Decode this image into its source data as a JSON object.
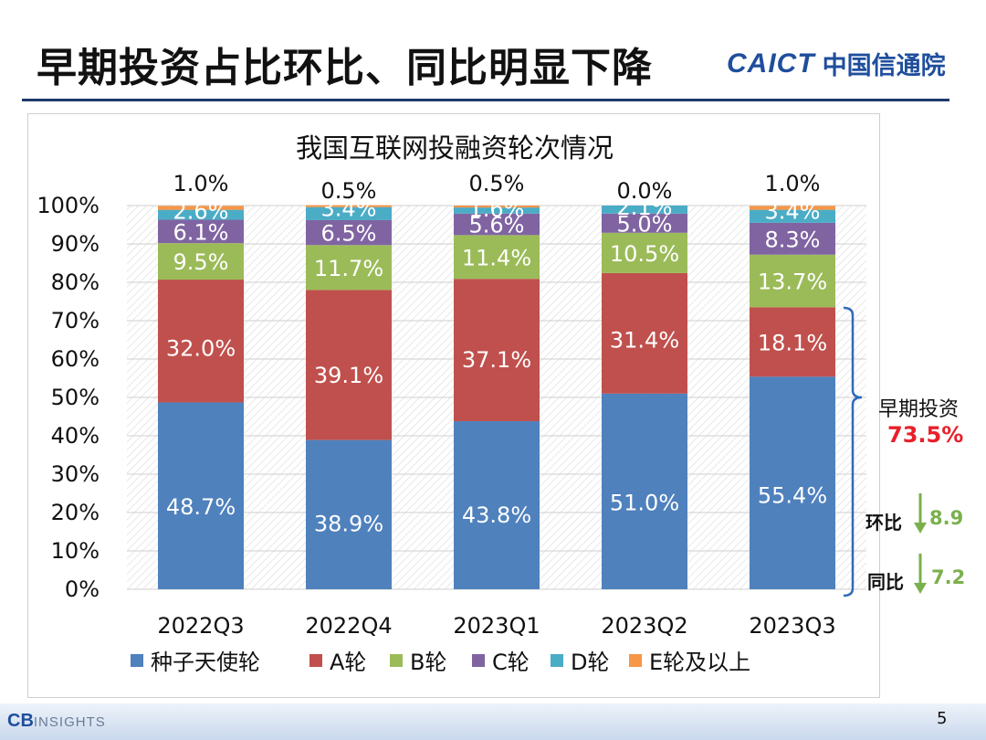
{
  "slide": {
    "title": "早期投资占比环比、同比明显下降",
    "logo_en": "CAICT",
    "logo_cn": "中国信通院",
    "page_number": "5",
    "footer_logo": "CB",
    "footer_logo_suffix": "INSIGHTS"
  },
  "side_annotations": {
    "early_label": "早期投资",
    "early_value": "73.5%",
    "mom_label": "环比",
    "mom_value": "8.9",
    "yoy_label": "同比",
    "yoy_value": "7.2"
  },
  "colors": {
    "seed": "#4f81bd",
    "a": "#c0504d",
    "b": "#9bbb59",
    "c": "#8064a2",
    "d": "#4bacc6",
    "e": "#f79646",
    "red": "#e8202a",
    "green": "#7ab04c",
    "bracket": "#2e6bb8"
  },
  "chart_data": {
    "type": "bar",
    "stacked": true,
    "title": "我国互联网投融资轮次情况",
    "categories": [
      "2022Q3",
      "2022Q4",
      "2023Q1",
      "2023Q2",
      "2023Q3"
    ],
    "ylim": [
      0,
      100
    ],
    "yticks": [
      "0%",
      "10%",
      "20%",
      "30%",
      "40%",
      "50%",
      "60%",
      "70%",
      "80%",
      "90%",
      "100%"
    ],
    "legend_position": "bottom",
    "series": [
      {
        "name": "种子天使轮",
        "color": "#4f81bd",
        "values": [
          48.7,
          38.9,
          43.8,
          51.0,
          55.4
        ],
        "labels": [
          "48.7%",
          "38.9%",
          "43.8%",
          "51.0%",
          "55.4%"
        ]
      },
      {
        "name": "A轮",
        "color": "#c0504d",
        "values": [
          32.0,
          39.1,
          37.1,
          31.4,
          18.1
        ],
        "labels": [
          "32.0%",
          "39.1%",
          "37.1%",
          "31.4%",
          "18.1%"
        ]
      },
      {
        "name": "B轮",
        "color": "#9bbb59",
        "values": [
          9.5,
          11.7,
          11.4,
          10.5,
          13.7
        ],
        "labels": [
          "9.5%",
          "11.7%",
          "11.4%",
          "10.5%",
          "13.7%"
        ]
      },
      {
        "name": "C轮",
        "color": "#8064a2",
        "values": [
          6.1,
          6.5,
          5.6,
          5.0,
          8.3
        ],
        "labels": [
          "6.1%",
          "6.5%",
          "5.6%",
          "5.0%",
          "8.3%"
        ]
      },
      {
        "name": "D轮",
        "color": "#4bacc6",
        "values": [
          2.6,
          3.4,
          1.6,
          2.1,
          3.4
        ],
        "labels": [
          "2.6%",
          "3.4%",
          "1.6%",
          "2.1%",
          "3.4%"
        ]
      },
      {
        "name": "E轮及以上",
        "color": "#f79646",
        "values": [
          1.0,
          0.5,
          0.5,
          0.0,
          1.0
        ],
        "labels": [
          "1.0%",
          "0.5%",
          "0.5%",
          "0.0%",
          "1.0%"
        ]
      }
    ]
  }
}
